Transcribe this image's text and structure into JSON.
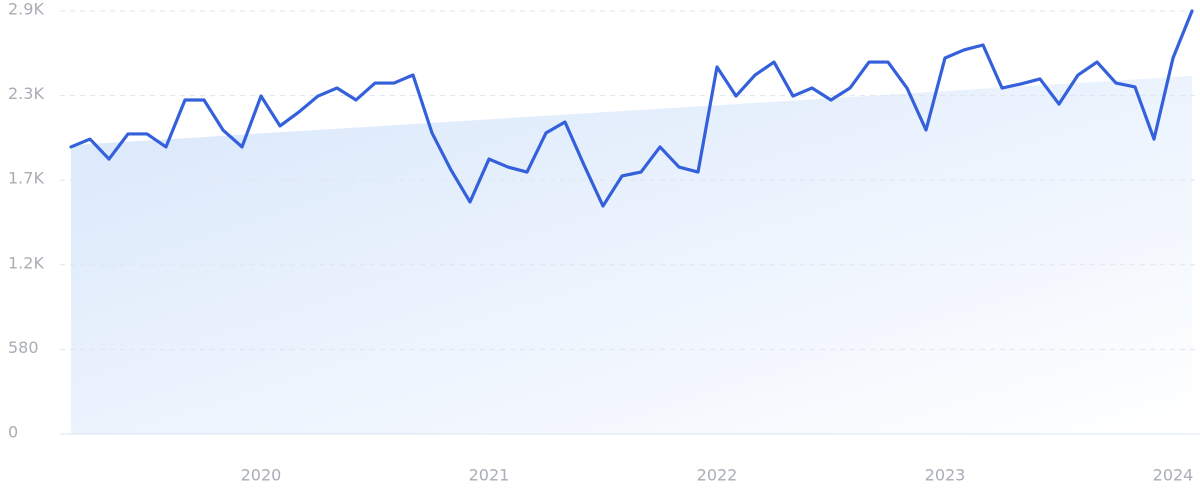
{
  "chart_data": {
    "type": "line",
    "x": [
      2019.1667,
      2019.25,
      2019.3333,
      2019.4167,
      2019.5,
      2019.5833,
      2019.6667,
      2019.75,
      2019.8333,
      2019.9167,
      2020.0,
      2020.0833,
      2020.1667,
      2020.25,
      2020.3333,
      2020.4167,
      2020.5,
      2020.5833,
      2020.6667,
      2020.75,
      2020.8333,
      2020.9167,
      2021.0,
      2021.0833,
      2021.1667,
      2021.25,
      2021.3333,
      2021.4167,
      2021.5,
      2021.5833,
      2021.6667,
      2021.75,
      2021.8333,
      2021.9167,
      2022.0,
      2022.0833,
      2022.1667,
      2022.25,
      2022.3333,
      2022.4167,
      2022.5,
      2022.5833,
      2022.6667,
      2022.75,
      2022.8333,
      2022.9167,
      2023.0,
      2023.0833,
      2023.1667,
      2023.25,
      2023.3333,
      2023.4167,
      2023.5,
      2023.5833,
      2023.6667,
      2023.75,
      2023.8333,
      2023.9167,
      2024.0,
      2024.0833
    ],
    "series": [
      {
        "color": "#3461db",
        "values": [
          1968,
          2022,
          1885,
          2057,
          2057,
          1968,
          2290,
          2290,
          2084,
          1968,
          2317,
          2112,
          2208,
          2317,
          2372,
          2290,
          2406,
          2406,
          2461,
          2064,
          1810,
          1591,
          1885,
          1830,
          1796,
          2064,
          2139,
          1844,
          1563,
          1769,
          1796,
          1968,
          1830,
          1796,
          2516,
          2317,
          2461,
          2550,
          2317,
          2372,
          2290,
          2372,
          2550,
          2550,
          2372,
          2084,
          2578,
          2633,
          2667,
          2372,
          2400,
          2434,
          2262,
          2461,
          2550,
          2406,
          2379,
          2022,
          2578,
          2900
        ]
      }
    ],
    "trend": {
      "color": "#dbe9fb",
      "x": [
        2019.1667,
        2024.0833
      ],
      "values": [
        1980,
        2455
      ]
    },
    "xlim": [
      2019.1667,
      2024.0833
    ],
    "xticks": [
      2020,
      2021,
      2022,
      2023,
      2024
    ],
    "ylim": [
      0,
      2900
    ],
    "yticks": [
      0,
      580,
      {
        "value": 1160,
        "label": "1.2K"
      },
      {
        "value": 1740,
        "label": "1.7K"
      },
      {
        "value": 2320,
        "label": "2.3K"
      },
      {
        "value": 2900,
        "label": "2.9K"
      }
    ],
    "grid": true
  }
}
